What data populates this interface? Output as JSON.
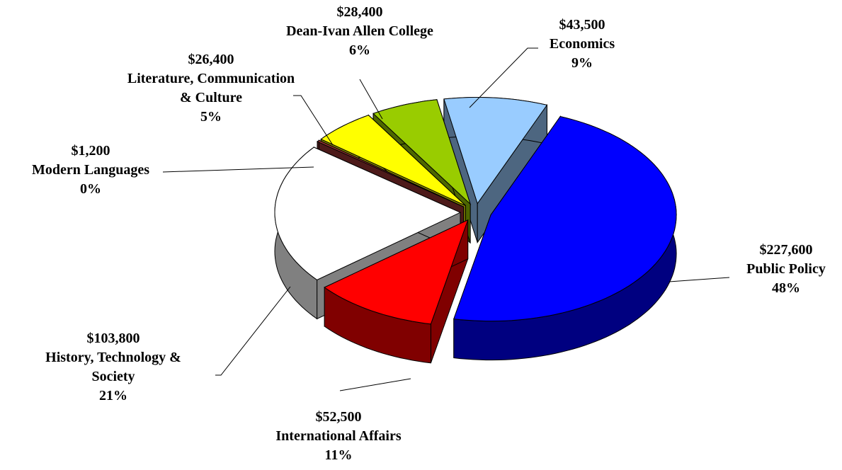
{
  "chart_data": {
    "type": "pie3d",
    "categories": [
      "Public Policy",
      "International Affairs",
      "History, Technology & Society",
      "Modern Languages",
      "Literature, Communication & Culture",
      "Dean-Ivan Allen College",
      "Economics"
    ],
    "values": [
      227600,
      52500,
      103800,
      1200,
      26400,
      28400,
      43500
    ],
    "value_labels": [
      "$227,600",
      "$52,500",
      "$103,800",
      "$1,200",
      "$26,400",
      "$28,400",
      "$43,500"
    ],
    "percent_labels": [
      "48%",
      "11%",
      "21%",
      "0%",
      "5%",
      "6%",
      "9%"
    ],
    "colors": [
      "#0000ff",
      "#ff0000",
      "#ffffff",
      "#993333",
      "#ffff00",
      "#99cc00",
      "#99ccff"
    ]
  }
}
